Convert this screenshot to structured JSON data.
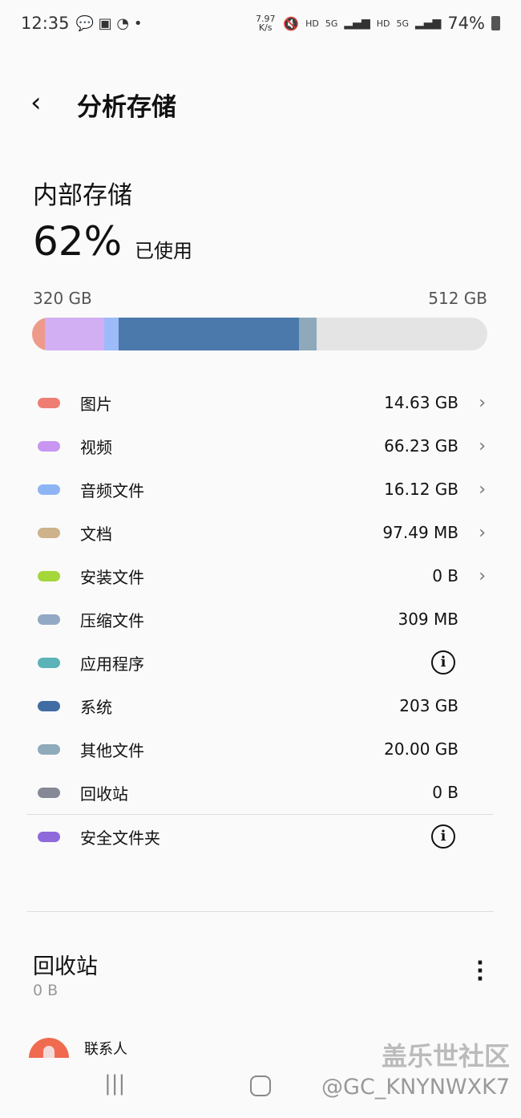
{
  "status_bar": {
    "time": "12:35",
    "net_speed": "7.97 K/s",
    "hd1": "HD",
    "hd2": "HD",
    "net1": "5G",
    "net2": "5G",
    "battery": "74%"
  },
  "header": {
    "title": "分析存储"
  },
  "storage": {
    "title": "内部存储",
    "percent": "62%",
    "used_label": "已使用",
    "used": "320 GB",
    "total": "512 GB",
    "bar_segments_gb": [
      {
        "category": "图片",
        "value": 14.63,
        "color": "#EE9A8A"
      },
      {
        "category": "视频",
        "value": 66.23,
        "color": "#D2AEF3"
      },
      {
        "category": "音频文件",
        "value": 16.12,
        "color": "#9DBBF8"
      },
      {
        "category": "系统",
        "value": 203,
        "color": "#4B79AC"
      },
      {
        "category": "其他文件",
        "value": 20.0,
        "color": "#8FA9BB"
      }
    ]
  },
  "categories": [
    {
      "name": "图片",
      "size": "14.63 GB",
      "color": "#EE7D73",
      "action": "chevron"
    },
    {
      "name": "视频",
      "size": "66.23 GB",
      "color": "#C896F0",
      "action": "chevron"
    },
    {
      "name": "音频文件",
      "size": "16.12 GB",
      "color": "#8EB4F5",
      "action": "chevron"
    },
    {
      "name": "文档",
      "size": "97.49 MB",
      "color": "#CDB28A",
      "action": "chevron"
    },
    {
      "name": "安装文件",
      "size": "0 B",
      "color": "#A5D63A",
      "action": "chevron"
    },
    {
      "name": "压缩文件",
      "size": "309 MB",
      "color": "#93A8C4",
      "action": "none"
    },
    {
      "name": "应用程序",
      "size": "",
      "color": "#5BB3B8",
      "action": "info"
    },
    {
      "name": "系统",
      "size": "203 GB",
      "color": "#3F6DA3",
      "action": "none"
    },
    {
      "name": "其他文件",
      "size": "20.00 GB",
      "color": "#8FAABB",
      "action": "none"
    },
    {
      "name": "回收站",
      "size": "0 B",
      "color": "#868896",
      "action": "none"
    },
    {
      "name": "安全文件夹",
      "size": "",
      "color": "#8F6ADB",
      "action": "info"
    }
  ],
  "recycle_bin": {
    "title": "回收站",
    "size": "0 B",
    "items": [
      {
        "name": "联系人"
      }
    ]
  },
  "watermark": {
    "line1": "盖乐世社区",
    "line2": "@GC_KNYNWXK7"
  }
}
